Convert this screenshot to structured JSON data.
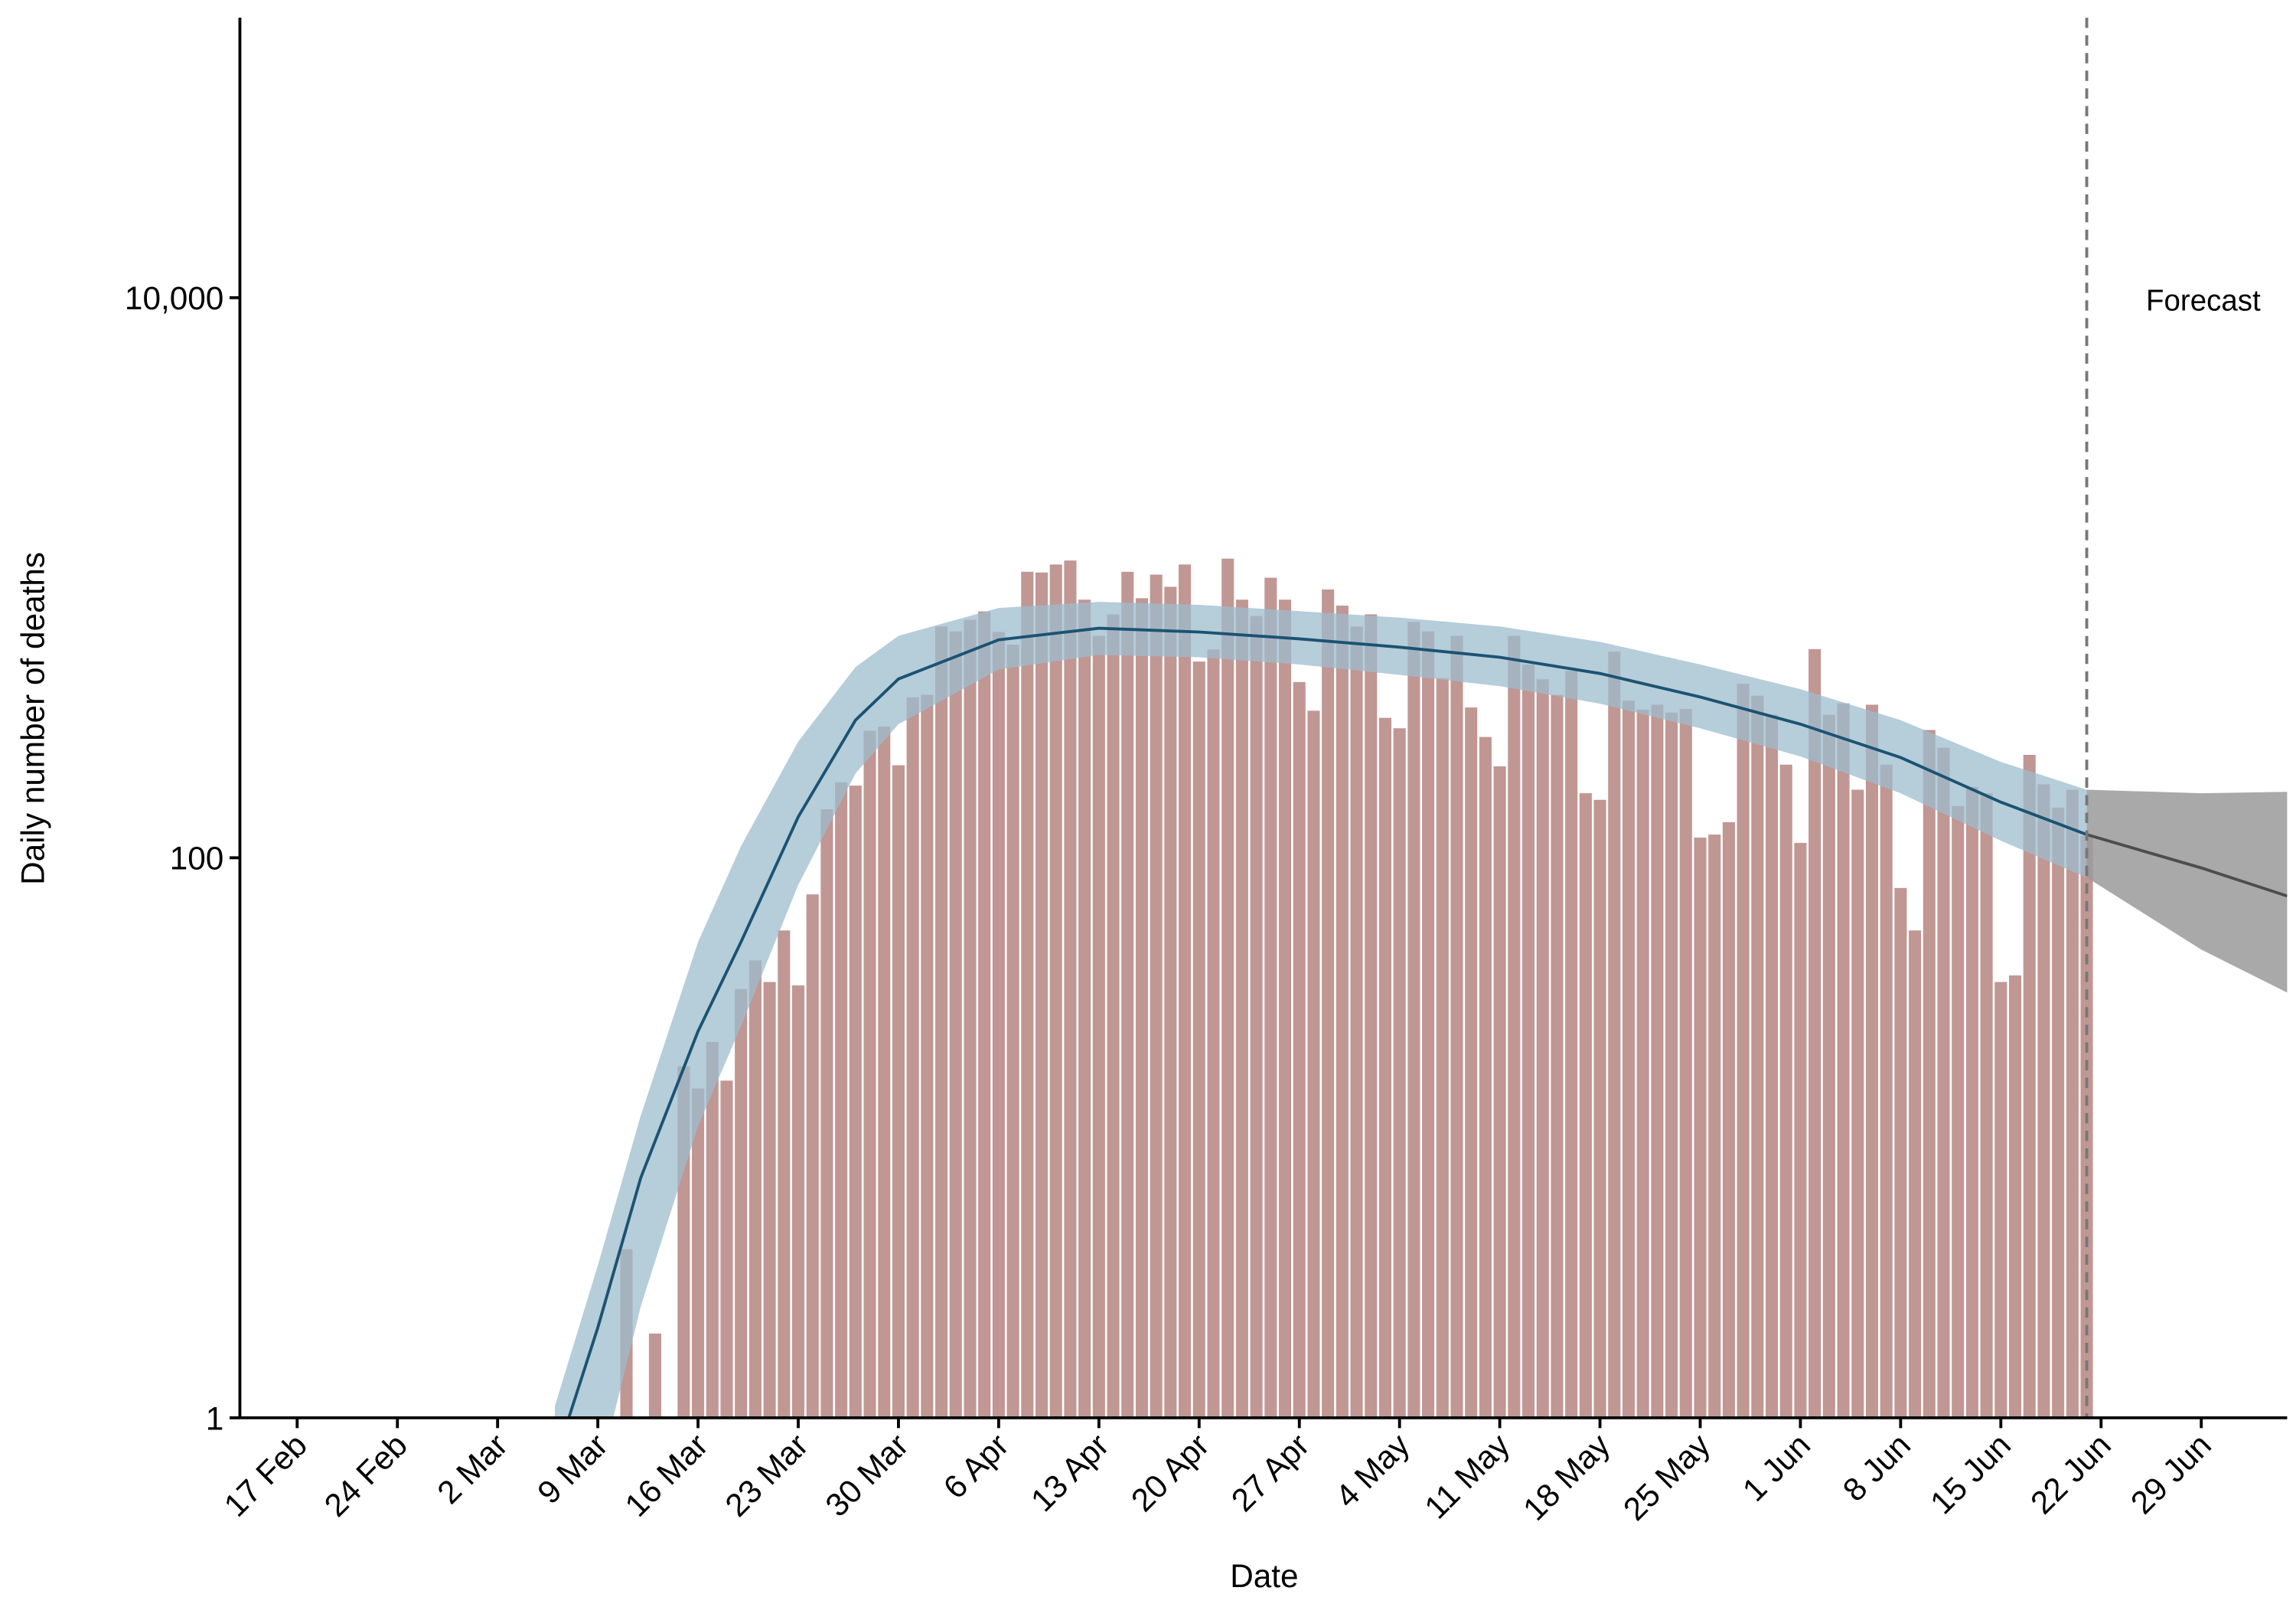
{
  "chart_data": {
    "type": "bar",
    "xlabel": "Date",
    "ylabel": "Daily number of deaths",
    "annotation": "Forecast",
    "forecast_start": "21 Jun",
    "log_scale": true,
    "color": "#b98c87",
    "xlim": [
      "13 Feb",
      "5 Jul"
    ],
    "xticks": [
      "17 Feb",
      "24 Feb",
      "2 Mar",
      "9 Mar",
      "16 Mar",
      "23 Mar",
      "30 Mar",
      "6 Apr",
      "13 Apr",
      "20 Apr",
      "27 Apr",
      "4 May",
      "11 May",
      "18 May",
      "25 May",
      "1 Jun",
      "8 Jun",
      "15 Jun",
      "22 Jun",
      "29 Jun"
    ],
    "ylim": [
      1,
      100000
    ],
    "yticks": [
      1,
      100,
      {
        "value": 10000,
        "label": "10,000"
      }
    ],
    "x": [
      "11 Mar",
      "13 Mar",
      "15 Mar",
      "16 Mar",
      "17 Mar",
      "18 Mar",
      "19 Mar",
      "20 Mar",
      "21 Mar",
      "22 Mar",
      "23 Mar",
      "24 Mar",
      "25 Mar",
      "26 Mar",
      "27 Mar",
      "28 Mar",
      "29 Mar",
      "30 Mar",
      "31 Mar",
      "1 Apr",
      "2 Apr",
      "3 Apr",
      "4 Apr",
      "5 Apr",
      "6 Apr",
      "7 Apr",
      "8 Apr",
      "9 Apr",
      "10 Apr",
      "11 Apr",
      "12 Apr",
      "13 Apr",
      "14 Apr",
      "15 Apr",
      "16 Apr",
      "17 Apr",
      "18 Apr",
      "19 Apr",
      "20 Apr",
      "21 Apr",
      "22 Apr",
      "23 Apr",
      "24 Apr",
      "25 Apr",
      "26 Apr",
      "27 Apr",
      "28 Apr",
      "29 Apr",
      "30 Apr",
      "1 May",
      "2 May",
      "3 May",
      "4 May",
      "5 May",
      "6 May",
      "7 May",
      "8 May",
      "9 May",
      "10 May",
      "11 May",
      "12 May",
      "13 May",
      "14 May",
      "15 May",
      "16 May",
      "17 May",
      "18 May",
      "19 May",
      "20 May",
      "21 May",
      "22 May",
      "23 May",
      "24 May",
      "25 May",
      "26 May",
      "27 May",
      "28 May",
      "29 May",
      "30 May",
      "31 May",
      "1 Jun",
      "2 Jun",
      "3 Jun",
      "4 Jun",
      "5 Jun",
      "6 Jun",
      "7 Jun",
      "8 Jun",
      "9 Jun",
      "10 Jun",
      "11 Jun",
      "12 Jun",
      "13 Jun",
      "14 Jun",
      "15 Jun",
      "16 Jun",
      "17 Jun",
      "18 Jun",
      "19 Jun",
      "20 Jun",
      "21 Jun"
    ],
    "values": [
      4,
      2,
      18,
      15,
      22,
      16,
      34,
      43,
      36,
      55,
      35,
      74,
      149,
      186,
      181,
      284,
      294,
      214,
      374,
      382,
      670,
      643,
      708,
      758,
      640,
      577,
      1050,
      1044,
      1115,
      1152,
      835,
      620,
      740,
      1050,
      845,
      1026,
      928,
      1115,
      502,
      555,
      1170,
      835,
      730,
      1000,
      835,
      424,
      335,
      908,
      795,
      670,
      740,
      316,
      290,
      695,
      643,
      438,
      620,
      344,
      270,
      212,
      620,
      490,
      434,
      382,
      465,
      170,
      161,
      545,
      364,
      338,
      352,
      330,
      340,
      118,
      121,
      134,
      418,
      379,
      324,
      215,
      113,
      556,
      324,
      356,
      175,
      352,
      215,
      78,
      55,
      286,
      247,
      153,
      179,
      170,
      36,
      38,
      233,
      183,
      151,
      175,
      120
    ],
    "fit": {
      "color": "#1b5372",
      "band_color": "#9dbccd",
      "x": [
        "6 Mar",
        "9 Mar",
        "12 Mar",
        "16 Mar",
        "19 Mar",
        "23 Mar",
        "27 Mar",
        "30 Mar",
        "6 Apr",
        "13 Apr",
        "20 Apr",
        "27 Apr",
        "4 May",
        "11 May",
        "18 May",
        "25 May",
        "1 Jun",
        "8 Jun",
        "15 Jun",
        "21 Jun"
      ],
      "values": [
        0.7,
        2.1,
        7.2,
        24,
        50,
        140,
        310,
        435,
        600,
        660,
        640,
        605,
        565,
        520,
        455,
        375,
        300,
        228,
        158,
        121
      ],
      "upper": [
        1.1,
        3.5,
        12,
        50,
        110,
        260,
        480,
        620,
        780,
        820,
        800,
        760,
        720,
        670,
        590,
        490,
        400,
        310,
        220,
        175
      ],
      "lower": [
        0.2,
        0.6,
        2.5,
        11,
        25,
        80,
        200,
        300,
        470,
        530,
        520,
        490,
        450,
        410,
        355,
        290,
        230,
        170,
        115,
        85
      ]
    },
    "forecast": {
      "color": "#4d4d4d",
      "band_color": "#9a9a9a",
      "x": [
        "21 Jun",
        "29 Jun",
        "5 Jul"
      ],
      "values": [
        121,
        92,
        73
      ],
      "upper": [
        175,
        170,
        172
      ],
      "lower": [
        85,
        47,
        33
      ]
    }
  }
}
